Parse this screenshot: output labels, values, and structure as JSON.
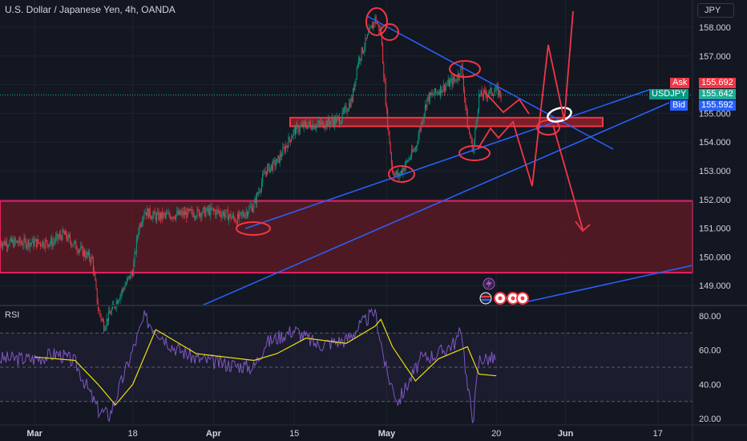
{
  "header": {
    "title": "U.S. Dollar / Japanese Yen, 4h, OANDA",
    "currency": "JPY"
  },
  "quote": {
    "ask_label": "Ask",
    "ask": "155.692",
    "symbol": "USDJPY",
    "last": "155.642",
    "bid_label": "Bid",
    "bid": "155.592"
  },
  "rsi_panel": {
    "title": "RSI"
  },
  "colors": {
    "background": "#131722",
    "up": "#089981",
    "down": "#f23645",
    "rsi_line": "#7e57c2",
    "rsi_ma": "#e8e010",
    "annotation_red": "#f23645",
    "trendline_blue": "#2962ff",
    "zone_fill": "#5a1a24"
  },
  "icons": [
    "lightning-icon",
    "flag-icon",
    "calendar-event-icon"
  ],
  "chart_data": [
    {
      "type": "candlestick",
      "title": "U.S. Dollar / Japanese Yen, 4h, OANDA",
      "ylim": [
        148.3,
        158.6
      ],
      "y_ticks": [
        "158.000",
        "157.000",
        "156.000",
        "155.000",
        "154.000",
        "153.000",
        "152.000",
        "151.000",
        "150.000",
        "149.000"
      ],
      "x_ticks": [
        "Mar",
        "18",
        "Apr",
        "15",
        "May",
        "20",
        "Jun",
        "17"
      ],
      "last_price": 155.642,
      "path_points": [
        {
          "date": "2024-03-04",
          "close": 150.5
        },
        {
          "date": "2024-03-06",
          "close": 150.8
        },
        {
          "date": "2024-03-08",
          "close": 150.4
        },
        {
          "date": "2024-03-11",
          "close": 149.9
        },
        {
          "date": "2024-03-12",
          "close": 148.2
        },
        {
          "date": "2024-03-13",
          "close": 147.6
        },
        {
          "date": "2024-03-15",
          "close": 148.4
        },
        {
          "date": "2024-03-18",
          "close": 149.5
        },
        {
          "date": "2024-03-19",
          "close": 151.0
        },
        {
          "date": "2024-03-20",
          "close": 151.6
        },
        {
          "date": "2024-03-22",
          "close": 151.4
        },
        {
          "date": "2024-03-27",
          "close": 151.5
        },
        {
          "date": "2024-04-01",
          "close": 151.6
        },
        {
          "date": "2024-04-03",
          "close": 151.5
        },
        {
          "date": "2024-04-05",
          "close": 151.3
        },
        {
          "date": "2024-04-08",
          "close": 151.8
        },
        {
          "date": "2024-04-10",
          "close": 153.0
        },
        {
          "date": "2024-04-12",
          "close": 153.3
        },
        {
          "date": "2024-04-15",
          "close": 154.4
        },
        {
          "date": "2024-04-17",
          "close": 154.6
        },
        {
          "date": "2024-04-19",
          "close": 154.6
        },
        {
          "date": "2024-04-23",
          "close": 154.8
        },
        {
          "date": "2024-04-25",
          "close": 155.5
        },
        {
          "date": "2024-04-26",
          "close": 156.8
        },
        {
          "date": "2024-04-29",
          "close": 158.3
        },
        {
          "date": "2024-04-30",
          "close": 157.8
        },
        {
          "date": "2024-05-01",
          "close": 155.0
        },
        {
          "date": "2024-05-02",
          "close": 153.0
        },
        {
          "date": "2024-05-03",
          "close": 152.8
        },
        {
          "date": "2024-05-06",
          "close": 153.8
        },
        {
          "date": "2024-05-08",
          "close": 155.5
        },
        {
          "date": "2024-05-10",
          "close": 155.8
        },
        {
          "date": "2024-05-13",
          "close": 156.2
        },
        {
          "date": "2024-05-14",
          "close": 156.6
        },
        {
          "date": "2024-05-15",
          "close": 154.6
        },
        {
          "date": "2024-05-16",
          "close": 153.7
        },
        {
          "date": "2024-05-17",
          "close": 155.6
        },
        {
          "date": "2024-05-20",
          "close": 155.8
        },
        {
          "date": "2024-05-21",
          "close": 155.642
        }
      ]
    },
    {
      "type": "line",
      "title": "RSI",
      "ylim": [
        16,
        84
      ],
      "y_ticks": [
        "80.00",
        "60.00",
        "40.00",
        "20.00"
      ],
      "bands": [
        70,
        50,
        30
      ],
      "series": [
        {
          "values": [
            {
              "date": "2024-03-01",
              "rsi": 55
            },
            {
              "date": "2024-03-05",
              "rsi": 58
            },
            {
              "date": "2024-03-08",
              "rsi": 53
            },
            {
              "date": "2024-03-12",
              "rsi": 25
            },
            {
              "date": "2024-03-14",
              "rsi": 22
            },
            {
              "date": "2024-03-18",
              "rsi": 60
            },
            {
              "date": "2024-03-20",
              "rsi": 79
            },
            {
              "date": "2024-03-25",
              "rsi": 62
            },
            {
              "date": "2024-03-29",
              "rsi": 55
            },
            {
              "date": "2024-04-03",
              "rsi": 52
            },
            {
              "date": "2024-04-08",
              "rsi": 50
            },
            {
              "date": "2024-04-10",
              "rsi": 64
            },
            {
              "date": "2024-04-15",
              "rsi": 72
            },
            {
              "date": "2024-04-19",
              "rsi": 63
            },
            {
              "date": "2024-04-24",
              "rsi": 66
            },
            {
              "date": "2024-04-29",
              "rsi": 83
            },
            {
              "date": "2024-05-01",
              "rsi": 47
            },
            {
              "date": "2024-05-03",
              "rsi": 30
            },
            {
              "date": "2024-05-07",
              "rsi": 55
            },
            {
              "date": "2024-05-10",
              "rsi": 58
            },
            {
              "date": "2024-05-13",
              "rsi": 65
            },
            {
              "date": "2024-05-14",
              "rsi": 72
            },
            {
              "date": "2024-05-15",
              "rsi": 38
            },
            {
              "date": "2024-05-16",
              "rsi": 20
            },
            {
              "date": "2024-05-17",
              "rsi": 55
            },
            {
              "date": "2024-05-20",
              "rsi": 55
            }
          ]
        },
        {
          "values": [
            {
              "date": "2024-03-01",
              "rsi": 56
            },
            {
              "date": "2024-03-08",
              "rsi": 54
            },
            {
              "date": "2024-03-12",
              "rsi": 40
            },
            {
              "date": "2024-03-15",
              "rsi": 28
            },
            {
              "date": "2024-03-18",
              "rsi": 40
            },
            {
              "date": "2024-03-22",
              "rsi": 72
            },
            {
              "date": "2024-03-25",
              "rsi": 66
            },
            {
              "date": "2024-03-29",
              "rsi": 58
            },
            {
              "date": "2024-04-08",
              "rsi": 54
            },
            {
              "date": "2024-04-12",
              "rsi": 58
            },
            {
              "date": "2024-04-17",
              "rsi": 67
            },
            {
              "date": "2024-04-24",
              "rsi": 64
            },
            {
              "date": "2024-04-29",
              "rsi": 74
            },
            {
              "date": "2024-04-30",
              "rsi": 78
            },
            {
              "date": "2024-05-02",
              "rsi": 62
            },
            {
              "date": "2024-05-06",
              "rsi": 42
            },
            {
              "date": "2024-05-10",
              "rsi": 55
            },
            {
              "date": "2024-05-15",
              "rsi": 62
            },
            {
              "date": "2024-05-17",
              "rsi": 46
            },
            {
              "date": "2024-05-20",
              "rsi": 45
            }
          ]
        }
      ]
    }
  ]
}
